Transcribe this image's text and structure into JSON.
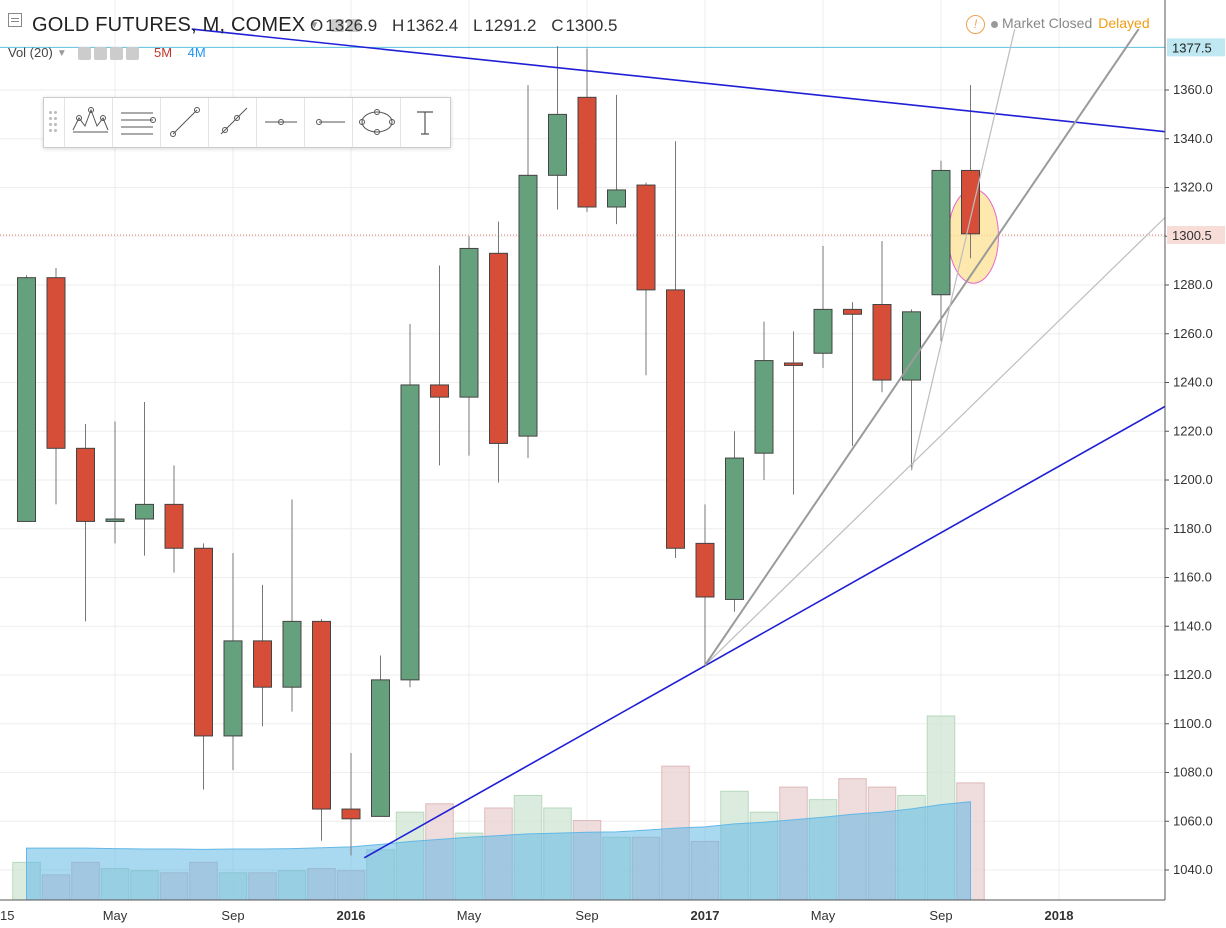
{
  "header": {
    "title": "GOLD FUTURES, M, COMEX",
    "ohlc": [
      {
        "k": "O",
        "v": "1326.9"
      },
      {
        "k": "H",
        "v": "1362.4"
      },
      {
        "k": "L",
        "v": "1291.2"
      },
      {
        "k": "C",
        "v": "1300.5"
      }
    ],
    "volume_label": "Vol (20)",
    "volume_m5": "5M",
    "volume_m4": "4M",
    "market_status": "Market Closed",
    "delayed": "Delayed"
  },
  "colors": {
    "up": "#66a17e",
    "down": "#d64d38",
    "trendline": "#1f1fd6",
    "fan": "#999999",
    "price_marker": "#1f6aa5",
    "line_marker": "#5bc0de"
  },
  "toolbar_tools": [
    "pitchfork-icon",
    "fib-lines-icon",
    "trend-line-icon",
    "ray-icon",
    "horizontal-ray-icon",
    "horizontal-line-icon",
    "ellipse-icon",
    "text-icon"
  ],
  "chart_data": {
    "type": "candlestick",
    "timeframe": "M",
    "y_ticks": [
      1040,
      1060,
      1080,
      1100,
      1120,
      1140,
      1160,
      1180,
      1200,
      1220,
      1240,
      1260,
      1280,
      1300,
      1320,
      1340,
      1360
    ],
    "ylim": [
      1028,
      1385
    ],
    "x_ticks": [
      {
        "label": "15",
        "idx": -0.5
      },
      {
        "label": "May",
        "idx": 3
      },
      {
        "label": "Sep",
        "idx": 7
      },
      {
        "label": "2016",
        "idx": 11
      },
      {
        "label": "May",
        "idx": 15
      },
      {
        "label": "Sep",
        "idx": 19
      },
      {
        "label": "2017",
        "idx": 23
      },
      {
        "label": "May",
        "idx": 27
      },
      {
        "label": "Sep",
        "idx": 31
      },
      {
        "label": "2018",
        "idx": 35
      }
    ],
    "bold_x_ticks": [
      "2016",
      "2017",
      "2018"
    ],
    "candles": [
      {
        "o": 1183,
        "h": 1284,
        "l": 1183,
        "c": 1283
      },
      {
        "o": 1283,
        "h": 1287,
        "l": 1190,
        "c": 1213
      },
      {
        "o": 1213,
        "h": 1223,
        "l": 1142,
        "c": 1183
      },
      {
        "o": 1183,
        "h": 1224,
        "l": 1174,
        "c": 1184
      },
      {
        "o": 1184,
        "h": 1232,
        "l": 1169,
        "c": 1190
      },
      {
        "o": 1190,
        "h": 1206,
        "l": 1162,
        "c": 1172
      },
      {
        "o": 1172,
        "h": 1174,
        "l": 1073,
        "c": 1095
      },
      {
        "o": 1095,
        "h": 1170,
        "l": 1081,
        "c": 1134
      },
      {
        "o": 1134,
        "h": 1157,
        "l": 1099,
        "c": 1115
      },
      {
        "o": 1115,
        "h": 1192,
        "l": 1105,
        "c": 1142
      },
      {
        "o": 1142,
        "h": 1143,
        "l": 1052,
        "c": 1065
      },
      {
        "o": 1065,
        "h": 1088,
        "l": 1046,
        "c": 1061
      },
      {
        "o": 1062,
        "h": 1128,
        "l": 1062,
        "c": 1118
      },
      {
        "o": 1118,
        "h": 1264,
        "l": 1115,
        "c": 1239
      },
      {
        "o": 1239,
        "h": 1288,
        "l": 1206,
        "c": 1234
      },
      {
        "o": 1234,
        "h": 1300,
        "l": 1210,
        "c": 1295
      },
      {
        "o": 1293,
        "h": 1306,
        "l": 1199,
        "c": 1215
      },
      {
        "o": 1218,
        "h": 1362,
        "l": 1209,
        "c": 1325
      },
      {
        "o": 1325,
        "h": 1378,
        "l": 1311,
        "c": 1350
      },
      {
        "o": 1357,
        "h": 1377,
        "l": 1310,
        "c": 1312
      },
      {
        "o": 1312,
        "h": 1358,
        "l": 1305,
        "c": 1319
      },
      {
        "o": 1321,
        "h": 1322,
        "l": 1243,
        "c": 1278
      },
      {
        "o": 1278,
        "h": 1339,
        "l": 1168,
        "c": 1172
      },
      {
        "o": 1174,
        "h": 1190,
        "l": 1124,
        "c": 1152
      },
      {
        "o": 1151,
        "h": 1220,
        "l": 1146,
        "c": 1209
      },
      {
        "o": 1211,
        "h": 1265,
        "l": 1200,
        "c": 1249
      },
      {
        "o": 1248,
        "h": 1261,
        "l": 1194,
        "c": 1247
      },
      {
        "o": 1252,
        "h": 1296,
        "l": 1246,
        "c": 1270
      },
      {
        "o": 1270,
        "h": 1273,
        "l": 1214,
        "c": 1268
      },
      {
        "o": 1272,
        "h": 1298,
        "l": 1236,
        "c": 1241
      },
      {
        "o": 1241,
        "h": 1270,
        "l": 1204,
        "c": 1269
      },
      {
        "o": 1276,
        "h": 1331,
        "l": 1257,
        "c": 1327
      },
      {
        "o": 1327,
        "h": 1362,
        "l": 1291,
        "c": 1301
      }
    ],
    "volume": [
      {
        "v": 0.9,
        "up": true
      },
      {
        "v": 0.6,
        "up": false
      },
      {
        "v": 0.9,
        "up": false
      },
      {
        "v": 0.75,
        "up": true
      },
      {
        "v": 0.7,
        "up": true
      },
      {
        "v": 0.65,
        "up": false
      },
      {
        "v": 0.9,
        "up": false
      },
      {
        "v": 0.65,
        "up": true
      },
      {
        "v": 0.65,
        "up": false
      },
      {
        "v": 0.7,
        "up": true
      },
      {
        "v": 0.75,
        "up": false
      },
      {
        "v": 0.7,
        "up": false
      },
      {
        "v": 1.2,
        "up": true
      },
      {
        "v": 2.1,
        "up": true
      },
      {
        "v": 2.3,
        "up": false
      },
      {
        "v": 1.6,
        "up": true
      },
      {
        "v": 2.2,
        "up": false
      },
      {
        "v": 2.5,
        "up": true
      },
      {
        "v": 2.2,
        "up": true
      },
      {
        "v": 1.9,
        "up": false
      },
      {
        "v": 1.5,
        "up": true
      },
      {
        "v": 1.5,
        "up": false
      },
      {
        "v": 3.2,
        "up": false
      },
      {
        "v": 1.4,
        "up": false
      },
      {
        "v": 2.6,
        "up": true
      },
      {
        "v": 2.1,
        "up": true
      },
      {
        "v": 2.7,
        "up": false
      },
      {
        "v": 2.4,
        "up": true
      },
      {
        "v": 2.9,
        "up": false
      },
      {
        "v": 2.7,
        "up": false
      },
      {
        "v": 2.5,
        "up": true
      },
      {
        "v": 4.4,
        "up": true
      },
      {
        "v": 2.8,
        "up": false
      }
    ],
    "volume_ma": [
      1.24,
      1.24,
      1.24,
      1.23,
      1.22,
      1.22,
      1.21,
      1.22,
      1.22,
      1.23,
      1.25,
      1.27,
      1.33,
      1.4,
      1.45,
      1.5,
      1.54,
      1.58,
      1.6,
      1.62,
      1.63,
      1.67,
      1.72,
      1.75,
      1.82,
      1.86,
      1.92,
      1.98,
      2.05,
      2.1,
      2.18,
      2.28,
      2.35
    ],
    "volume_max": 5.5,
    "last_price": "1300.5",
    "marked_level": "1377.5",
    "trendlines": [
      {
        "name": "resistance-trendline",
        "from": {
          "idx": 5.6,
          "price": 1385
        },
        "to": {
          "idx": 39.3,
          "price": 1342
        }
      },
      {
        "name": "support-trendline",
        "from": {
          "idx": 11.45,
          "price": 1045
        },
        "to": {
          "idx": 39.3,
          "price": 1235
        }
      }
    ],
    "fan_lines": [
      {
        "from": {
          "idx": 23,
          "price": 1124
        },
        "to": {
          "idx": 39.3,
          "price": 1316
        }
      },
      {
        "from": {
          "idx": 23,
          "price": 1124
        },
        "to": {
          "idx": 37.7,
          "price": 1385
        }
      },
      {
        "from": {
          "idx": 30,
          "price": 1204
        },
        "to": {
          "idx": 33.5,
          "price": 1385
        }
      }
    ],
    "ellipse": {
      "idx": 32.1,
      "price": 1300,
      "rx": 25,
      "ry": 47
    }
  }
}
